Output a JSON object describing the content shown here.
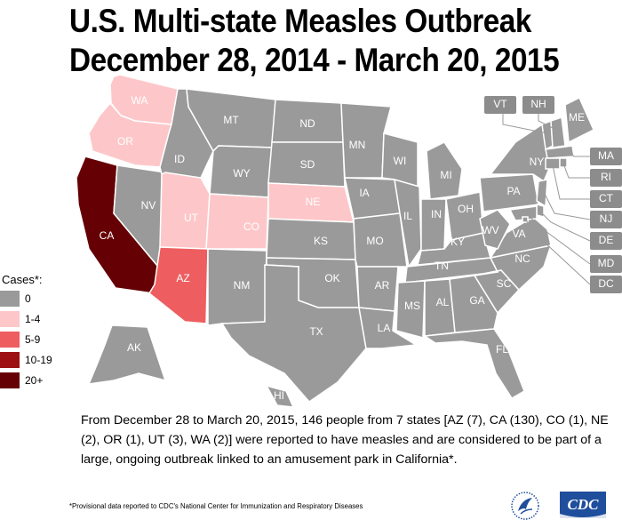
{
  "title": {
    "line1": "U.S. Multi-state Measles Outbreak",
    "line2": "December 28, 2014 - March 20, 2015"
  },
  "colors": {
    "0": "#9a9a9a",
    "1-4": "#fdc7c9",
    "5-9": "#ee5d5f",
    "10-19": "#9c0f12",
    "20+": "#650004",
    "background": "#ffffff"
  },
  "legend": {
    "title": "Cases*:",
    "items": [
      {
        "label": "0",
        "color": "#9a9a9a"
      },
      {
        "label": "1-4",
        "color": "#fdc7c9"
      },
      {
        "label": "5-9",
        "color": "#ee5d5f"
      },
      {
        "label": "10-19",
        "color": "#9c0f12"
      },
      {
        "label": "20+",
        "color": "#650004"
      }
    ]
  },
  "states": {
    "WA": {
      "label": "WA",
      "cases": 2
    },
    "OR": {
      "label": "OR",
      "cases": 1
    },
    "CA": {
      "label": "CA",
      "cases": 130
    },
    "AZ": {
      "label": "AZ",
      "cases": 7
    },
    "UT": {
      "label": "UT",
      "cases": 3
    },
    "CO": {
      "label": "CO",
      "cases": 1
    },
    "NE": {
      "label": "NE",
      "cases": 2
    },
    "MT": {
      "label": "MT",
      "cases": 0
    },
    "ID": {
      "label": "ID",
      "cases": 0
    },
    "WY": {
      "label": "WY",
      "cases": 0
    },
    "NV": {
      "label": "NV",
      "cases": 0
    },
    "NM": {
      "label": "NM",
      "cases": 0
    },
    "ND": {
      "label": "ND",
      "cases": 0
    },
    "SD": {
      "label": "SD",
      "cases": 0
    },
    "KS": {
      "label": "KS",
      "cases": 0
    },
    "OK": {
      "label": "OK",
      "cases": 0
    },
    "TX": {
      "label": "TX",
      "cases": 0
    },
    "MN": {
      "label": "MN",
      "cases": 0
    },
    "IA": {
      "label": "IA",
      "cases": 0
    },
    "MO": {
      "label": "MO",
      "cases": 0
    },
    "AR": {
      "label": "AR",
      "cases": 0
    },
    "LA": {
      "label": "LA",
      "cases": 0
    },
    "WI": {
      "label": "WI",
      "cases": 0
    },
    "IL": {
      "label": "IL",
      "cases": 0
    },
    "MI": {
      "label": "MI",
      "cases": 0
    },
    "IN": {
      "label": "IN",
      "cases": 0
    },
    "OH": {
      "label": "OH",
      "cases": 0
    },
    "KY": {
      "label": "KY",
      "cases": 0
    },
    "TN": {
      "label": "TN",
      "cases": 0
    },
    "MS": {
      "label": "MS",
      "cases": 0
    },
    "AL": {
      "label": "AL",
      "cases": 0
    },
    "GA": {
      "label": "GA",
      "cases": 0
    },
    "FL": {
      "label": "FL",
      "cases": 0
    },
    "SC": {
      "label": "SC",
      "cases": 0
    },
    "NC": {
      "label": "NC",
      "cases": 0
    },
    "VA": {
      "label": "VA",
      "cases": 0
    },
    "WV": {
      "label": "WV",
      "cases": 0
    },
    "PA": {
      "label": "PA",
      "cases": 0
    },
    "NY": {
      "label": "NY",
      "cases": 0
    },
    "ME": {
      "label": "ME",
      "cases": 0
    },
    "AK": {
      "label": "AK",
      "cases": 0
    },
    "HI": {
      "label": "HI",
      "cases": 0
    },
    "VT": {
      "label": "VT",
      "cases": 0
    },
    "NH": {
      "label": "NH",
      "cases": 0
    },
    "MA": {
      "label": "MA",
      "cases": 0
    },
    "RI": {
      "label": "RI",
      "cases": 0
    },
    "CT": {
      "label": "CT",
      "cases": 0
    },
    "NJ": {
      "label": "NJ",
      "cases": 0
    },
    "DE": {
      "label": "DE",
      "cases": 0
    },
    "MD": {
      "label": "MD",
      "cases": 0
    },
    "DC": {
      "label": "DC",
      "cases": 0
    }
  },
  "description": "From December 28 to March 20, 2015, 146 people from 7 states [AZ (7), CA (130), CO (1), NE (2), OR (1), UT (3), WA (2)] were reported to have measles and are considered to be part of a large, ongoing outbreak linked to an amusement park in California*.",
  "footnote": "*Provisional data reported to CDC's National Center for Immunization and Respiratory Diseases",
  "logos": {
    "hhs_icon": "hhs-eagle-icon",
    "cdc_text": "CDC"
  }
}
